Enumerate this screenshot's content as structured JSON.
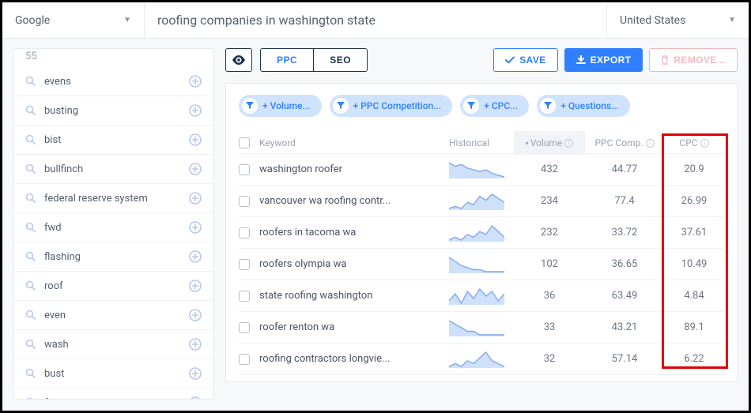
{
  "topbar": {
    "engine": "Google",
    "query": "roofing companies in washington state",
    "country": "United States"
  },
  "sidebar": {
    "count": "55",
    "items": [
      {
        "label": "evens"
      },
      {
        "label": "busting"
      },
      {
        "label": "bist"
      },
      {
        "label": "bullfinch"
      },
      {
        "label": "federal reserve system"
      },
      {
        "label": "fwd"
      },
      {
        "label": "flashing"
      },
      {
        "label": "roof"
      },
      {
        "label": "even"
      },
      {
        "label": "wash"
      },
      {
        "label": "bust"
      },
      {
        "label": "frs"
      }
    ]
  },
  "toolbar": {
    "ppc_label": "PPC",
    "seo_label": "SEO",
    "save_label": "SAVE",
    "export_label": "EXPORT",
    "remove_label": "REMOVE..."
  },
  "filters": [
    {
      "label": "+ Volume..."
    },
    {
      "label": "+ PPC Competition..."
    },
    {
      "label": "+ CPC..."
    },
    {
      "label": "+ Questions..."
    }
  ],
  "table": {
    "headers": {
      "keyword": "Keyword",
      "historical": "Historical",
      "volume": "Volume",
      "ppc": "PPC Comp.",
      "cpc": "CPC"
    },
    "rows": [
      {
        "keyword": "washington roofer",
        "spark": [
          10,
          8,
          9,
          7,
          6,
          5,
          6,
          4,
          3,
          2
        ],
        "volume": "432",
        "ppc": "44.77",
        "cpc": "20.9"
      },
      {
        "keyword": "vancouver wa roofing contr...",
        "spark": [
          2,
          3,
          2,
          5,
          4,
          8,
          6,
          9,
          7,
          5
        ],
        "volume": "234",
        "ppc": "77.4",
        "cpc": "26.99"
      },
      {
        "keyword": "roofers in tacoma wa",
        "spark": [
          3,
          4,
          3,
          5,
          4,
          6,
          5,
          8,
          6,
          4
        ],
        "volume": "232",
        "ppc": "33.72",
        "cpc": "37.61"
      },
      {
        "keyword": "roofers olympia wa",
        "spark": [
          9,
          7,
          5,
          4,
          3,
          3,
          2,
          2,
          2,
          2
        ],
        "volume": "102",
        "ppc": "36.65",
        "cpc": "10.49"
      },
      {
        "keyword": "state roofing washington",
        "spark": [
          5,
          8,
          4,
          9,
          6,
          10,
          7,
          9,
          5,
          8
        ],
        "volume": "36",
        "ppc": "63.49",
        "cpc": "4.84"
      },
      {
        "keyword": "roofer renton wa",
        "spark": [
          6,
          5,
          4,
          3,
          3,
          2,
          2,
          2,
          2,
          2
        ],
        "volume": "33",
        "ppc": "43.21",
        "cpc": "89.1"
      },
      {
        "keyword": "roofing contractors longvie...",
        "spark": [
          2,
          3,
          2,
          4,
          3,
          5,
          7,
          4,
          3,
          2
        ],
        "volume": "32",
        "ppc": "57.14",
        "cpc": "6.22"
      }
    ]
  },
  "colors": {
    "accent": "#2f7fff",
    "pill_bg": "#cfe3ff",
    "icon_muted": "#b8c8e6",
    "highlight": "#e40000",
    "spark": "#7fa8ef"
  }
}
